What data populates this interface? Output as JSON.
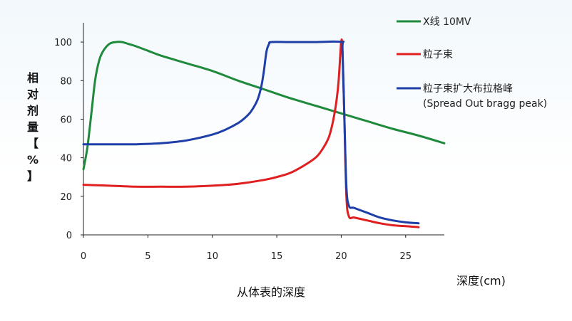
{
  "chart_data": {
    "type": "line",
    "xlabel": "深度(cm)",
    "caption": "从体表的深度",
    "ylabel_chars": [
      "相",
      "对",
      "剂",
      "量",
      "【",
      "%",
      "】"
    ],
    "xlim": [
      0,
      28
    ],
    "ylim": [
      0,
      110
    ],
    "x_ticks": [
      0,
      5,
      10,
      15,
      20,
      25
    ],
    "y_ticks": [
      0,
      20,
      40,
      60,
      80,
      100
    ],
    "grid": false,
    "legend_position": "top-right",
    "series": [
      {
        "name": "X线  10MV",
        "color": "#1f8a3c",
        "x": [
          0,
          0.3,
          0.6,
          0.9,
          1.2,
          1.5,
          2,
          2.5,
          3,
          3.5,
          4,
          5,
          6,
          8,
          10,
          12,
          14,
          16,
          18,
          20,
          22,
          24,
          26,
          28
        ],
        "y": [
          34,
          45,
          62,
          80,
          90,
          95,
          99,
          100,
          100,
          99,
          98,
          95.5,
          93,
          89,
          85,
          80,
          75.5,
          71,
          67,
          63,
          59,
          55,
          51.5,
          47.5
        ]
      },
      {
        "name": "粒子束",
        "color": "#e02020",
        "x": [
          0,
          2,
          4,
          6,
          8,
          10,
          12,
          14,
          15,
          16,
          17,
          18,
          18.5,
          19,
          19.3,
          19.6,
          19.8,
          20,
          20.1,
          20.25,
          20.4,
          20.6,
          21,
          22,
          23,
          24,
          25,
          26
        ],
        "y": [
          26,
          25.5,
          25,
          25,
          25,
          25.5,
          26.5,
          28.5,
          30,
          32,
          35.5,
          40,
          44,
          50,
          57,
          68,
          80,
          100,
          95,
          60,
          20,
          9.5,
          9,
          7.5,
          6,
          5,
          4.5,
          4
        ]
      },
      {
        "name": "粒子束扩大布拉格峰",
        "name_line2": "(Spread Out bragg peak)",
        "color": "#1f3fa8",
        "x": [
          0,
          2,
          4,
          6,
          8,
          10,
          11,
          12,
          12.5,
          13,
          13.5,
          13.8,
          14,
          14.2,
          14.4,
          14.6,
          16,
          18,
          20,
          20.1,
          20.25,
          20.4,
          20.6,
          21,
          22,
          23,
          24,
          25,
          26
        ],
        "y": [
          47,
          47,
          47,
          47.5,
          49,
          52,
          54.5,
          58,
          60.5,
          64,
          70,
          77,
          85,
          95,
          99,
          100,
          100,
          100,
          100,
          96,
          60,
          25,
          15,
          14,
          11.5,
          9,
          7.5,
          6.5,
          6
        ]
      }
    ]
  }
}
